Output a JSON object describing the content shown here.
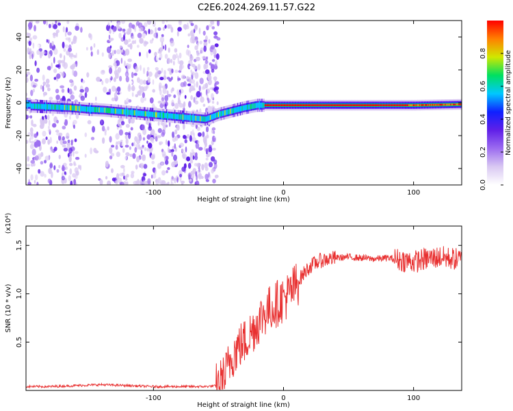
{
  "title": "C2E6.2024.269.11.57.G22",
  "chart_data": [
    {
      "type": "heatmap",
      "xlabel": "Height of straight line (km)",
      "ylabel": "Frequency (Hz)",
      "xlim": [
        -198,
        137
      ],
      "ylim": [
        -50,
        50
      ],
      "x_ticks": [
        -100,
        0,
        100
      ],
      "y_ticks": [
        -40,
        -20,
        0,
        20,
        40
      ],
      "colorbar": {
        "label": "Normalized spectral amplitude",
        "ticks": [
          0.0,
          0.2,
          0.4,
          0.6,
          0.8
        ],
        "range": [
          0,
          1
        ],
        "colors": [
          "#ffffff",
          "#d9c8f2",
          "#9c6cf0",
          "#6020e8",
          "#1020ff",
          "#00c8ff",
          "#00e060",
          "#d0e800",
          "#ff8000",
          "#ff0000"
        ]
      },
      "ridge": [
        {
          "x": -195,
          "y": -2
        },
        {
          "x": -180,
          "y": -2.5
        },
        {
          "x": -165,
          "y": -3
        },
        {
          "x": -150,
          "y": -4
        },
        {
          "x": -138,
          "y": -4.5
        },
        {
          "x": -60,
          "y": -10
        },
        {
          "x": -50,
          "y": -7
        },
        {
          "x": -40,
          "y": -5
        },
        {
          "x": -30,
          "y": -3
        },
        {
          "x": -20,
          "y": -1.5
        },
        {
          "x": 0,
          "y": -1.5
        },
        {
          "x": 50,
          "y": -1.5
        },
        {
          "x": 100,
          "y": -1.5
        },
        {
          "x": 137,
          "y": -1
        }
      ],
      "noise_region": [
        -198,
        -50
      ]
    },
    {
      "type": "line",
      "xlabel": "Height of straight line (km)",
      "ylabel": "SNR (10 * v/v)",
      "y_multiplier": "(x10⁴)",
      "xlim": [
        -198,
        137
      ],
      "ylim": [
        0,
        1.7
      ],
      "x_ticks": [
        -100,
        0,
        100
      ],
      "y_ticks": [
        0.5,
        1.0,
        1.5
      ],
      "y_tick_labels": [
        "0.5",
        "1.0",
        "1.5"
      ],
      "series": [
        {
          "color": "#e83030",
          "x": [
            -198,
            -180,
            -160,
            -140,
            -120,
            -100,
            -80,
            -60,
            -50,
            -45,
            -40,
            -35,
            -30,
            -25,
            -20,
            -15,
            -10,
            -5,
            0,
            5,
            10,
            15,
            20,
            25,
            30,
            35,
            40,
            50,
            60,
            70,
            80,
            90,
            100,
            110,
            120,
            137
          ],
          "y": [
            0.04,
            0.04,
            0.05,
            0.06,
            0.05,
            0.04,
            0.04,
            0.04,
            0.05,
            0.15,
            0.35,
            0.45,
            0.5,
            0.6,
            0.7,
            0.8,
            0.85,
            0.9,
            0.95,
            1.0,
            1.1,
            1.2,
            1.28,
            1.32,
            1.35,
            1.36,
            1.37,
            1.38,
            1.37,
            1.36,
            1.37,
            1.35,
            1.33,
            1.36,
            1.38,
            1.35
          ]
        }
      ]
    }
  ]
}
